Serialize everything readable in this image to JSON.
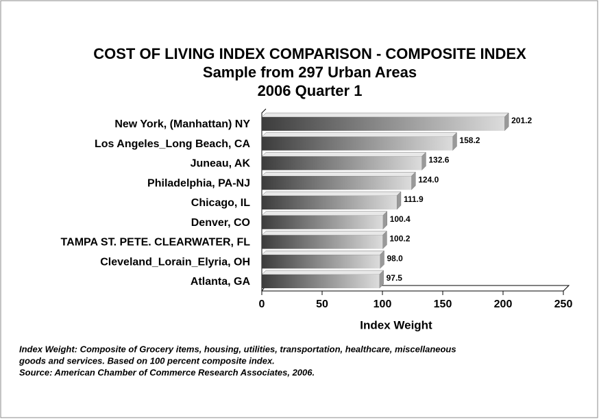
{
  "chart_data": {
    "type": "bar",
    "title": "COST OF LIVING INDEX COMPARISON - COMPOSITE INDEX",
    "subtitle": [
      "Sample from 297 Urban Areas",
      "2006 Quarter 1"
    ],
    "categories": [
      "New York, (Manhattan) NY",
      "Los Angeles_Long Beach, CA",
      "Juneau, AK",
      "Philadelphia, PA-NJ",
      "Chicago, IL",
      "Denver, CO",
      "TAMPA ST. PETE. CLEARWATER, FL",
      "Cleveland_Lorain_Elyria, OH",
      "Atlanta, GA"
    ],
    "values": [
      201.2,
      158.2,
      132.6,
      124.0,
      111.9,
      100.4,
      100.2,
      98.0,
      97.5
    ],
    "value_labels": [
      "201.2",
      "158.2",
      "132.6",
      "124.0",
      "111.9",
      "100.4",
      "100.2",
      "98.0",
      "97.5"
    ],
    "xlim": [
      0,
      250
    ],
    "xticks": [
      0,
      50,
      100,
      150,
      200,
      250
    ],
    "xlabel": "Index Weight",
    "notes": [
      "Index Weight:  Composite of Grocery items, housing, utilities, transportation, healthcare, miscellaneous",
      "goods and services.  Based on 100 percent composite index.",
      "Source:  American Chamber of Commerce Research Associates, 2006."
    ]
  }
}
